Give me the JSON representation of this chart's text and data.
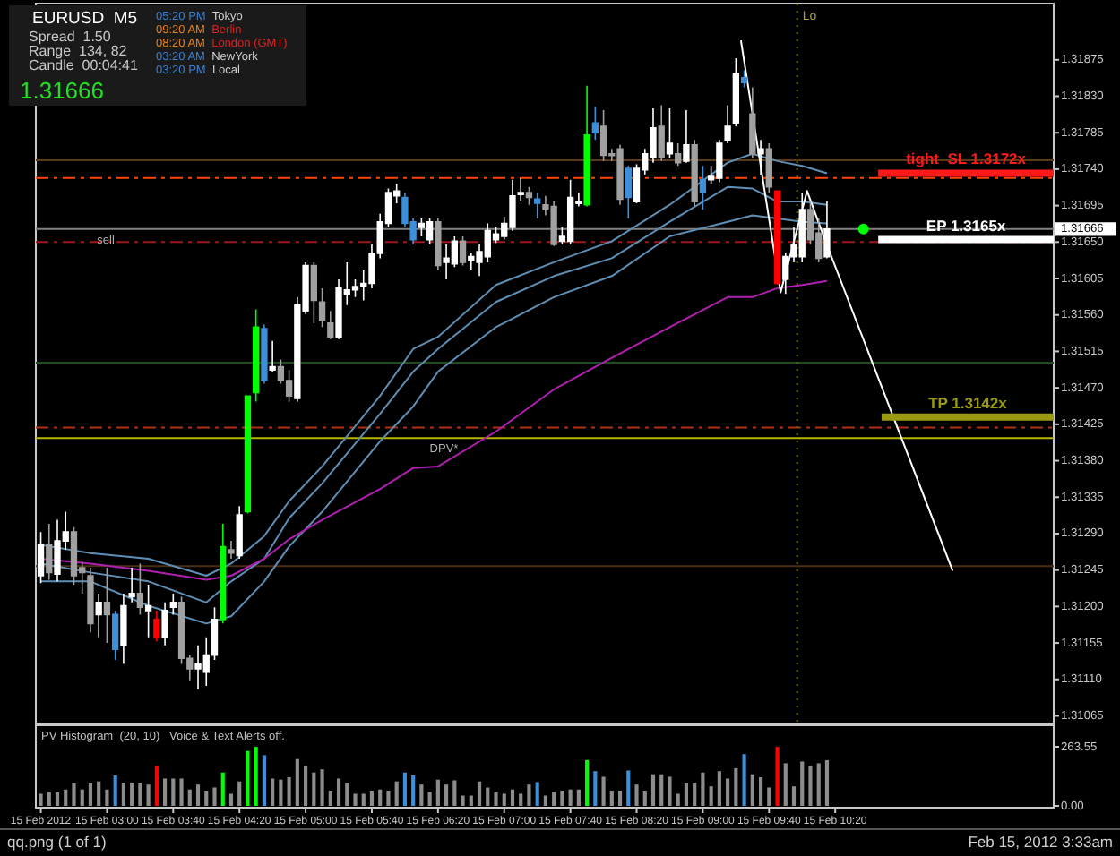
{
  "chart_data": [
    {
      "type": "candlestick",
      "title": "EURUSD  M5",
      "x": [
        "2012-02-15T02:20",
        "2012-02-15T02:25",
        "2012-02-15T02:30",
        "2012-02-15T02:35",
        "2012-02-15T02:40",
        "2012-02-15T02:45",
        "2012-02-15T02:50",
        "2012-02-15T02:55",
        "2012-02-15T03:00",
        "2012-02-15T03:05",
        "2012-02-15T03:10",
        "2012-02-15T03:15",
        "2012-02-15T03:20",
        "2012-02-15T03:25",
        "2012-02-15T03:30",
        "2012-02-15T03:35",
        "2012-02-15T03:40",
        "2012-02-15T03:45",
        "2012-02-15T03:50",
        "2012-02-15T03:55",
        "2012-02-15T04:00",
        "2012-02-15T04:05",
        "2012-02-15T04:10",
        "2012-02-15T04:15",
        "2012-02-15T04:20",
        "2012-02-15T04:25",
        "2012-02-15T04:30",
        "2012-02-15T04:35",
        "2012-02-15T04:40",
        "2012-02-15T04:45",
        "2012-02-15T04:50",
        "2012-02-15T04:55",
        "2012-02-15T05:00",
        "2012-02-15T05:05",
        "2012-02-15T05:10",
        "2012-02-15T05:15",
        "2012-02-15T05:20",
        "2012-02-15T05:25",
        "2012-02-15T05:30",
        "2012-02-15T05:35",
        "2012-02-15T05:40",
        "2012-02-15T05:45",
        "2012-02-15T05:50",
        "2012-02-15T05:55",
        "2012-02-15T06:00",
        "2012-02-15T06:05",
        "2012-02-15T06:10",
        "2012-02-15T06:15",
        "2012-02-15T06:20",
        "2012-02-15T06:25",
        "2012-02-15T06:30",
        "2012-02-15T06:35",
        "2012-02-15T06:40",
        "2012-02-15T06:45",
        "2012-02-15T06:50",
        "2012-02-15T06:55",
        "2012-02-15T07:00",
        "2012-02-15T07:05",
        "2012-02-15T07:10",
        "2012-02-15T07:15",
        "2012-02-15T07:20",
        "2012-02-15T07:25",
        "2012-02-15T07:30",
        "2012-02-15T07:35",
        "2012-02-15T07:40",
        "2012-02-15T07:45",
        "2012-02-15T07:50",
        "2012-02-15T07:55",
        "2012-02-15T08:00",
        "2012-02-15T08:05",
        "2012-02-15T08:10",
        "2012-02-15T08:15",
        "2012-02-15T08:20",
        "2012-02-15T08:25",
        "2012-02-15T08:30",
        "2012-02-15T08:35",
        "2012-02-15T08:40",
        "2012-02-15T08:45",
        "2012-02-15T08:50",
        "2012-02-15T08:55",
        "2012-02-15T09:00",
        "2012-02-15T09:05",
        "2012-02-15T09:10",
        "2012-02-15T09:15",
        "2012-02-15T09:20",
        "2012-02-15T09:25",
        "2012-02-15T09:30",
        "2012-02-15T09:35",
        "2012-02-15T09:40",
        "2012-02-15T09:45",
        "2012-02-15T09:50",
        "2012-02-15T09:55",
        "2012-02-15T10:00",
        "2012-02-15T10:05",
        "2012-02-15T10:10",
        "2012-02-15T10:15"
      ],
      "ohlc": [
        [
          1.31238,
          1.31292,
          1.31229,
          1.31276
        ],
        [
          1.31276,
          1.31302,
          1.31233,
          1.31242
        ],
        [
          1.3124,
          1.31307,
          1.31231,
          1.31281
        ],
        [
          1.31281,
          1.31317,
          1.3127,
          1.31292
        ],
        [
          1.31292,
          1.31298,
          1.31227,
          1.31238
        ],
        [
          1.31248,
          1.31255,
          1.31216,
          1.31242
        ],
        [
          1.31238,
          1.31248,
          1.31168,
          1.31179
        ],
        [
          1.3119,
          1.31216,
          1.31162,
          1.31205
        ],
        [
          1.31205,
          1.31248,
          1.31155,
          1.3119
        ],
        [
          1.3119,
          1.31195,
          1.31134,
          1.31147
        ],
        [
          1.31152,
          1.31216,
          1.31129,
          1.31201
        ],
        [
          1.31212,
          1.31248,
          1.31205,
          1.31216
        ],
        [
          1.31216,
          1.31253,
          1.3119,
          1.31199
        ],
        [
          1.31195,
          1.31227,
          1.31162,
          1.31201
        ],
        [
          1.31184,
          1.31195,
          1.31157,
          1.31162
        ],
        [
          1.31162,
          1.31205,
          1.31152,
          1.31195
        ],
        [
          1.31199,
          1.31216,
          1.3119,
          1.31205
        ],
        [
          1.31205,
          1.31212,
          1.31129,
          1.31136
        ],
        [
          1.31136,
          1.3114,
          1.31109,
          1.31123
        ],
        [
          1.31123,
          1.31152,
          1.31098,
          1.31129
        ],
        [
          1.31119,
          1.31162,
          1.31102,
          1.3114
        ],
        [
          1.3114,
          1.31199,
          1.31134,
          1.31184
        ],
        [
          1.31184,
          1.31302,
          1.31179,
          1.31274
        ],
        [
          1.3127,
          1.31281,
          1.31259,
          1.31266
        ],
        [
          1.31263,
          1.31324,
          1.31259,
          1.31313
        ],
        [
          1.31317,
          1.3146,
          1.31315,
          1.3146
        ],
        [
          1.31464,
          1.31567,
          1.31453,
          1.31545
        ],
        [
          1.31543,
          1.31548,
          1.31475,
          1.31479
        ],
        [
          1.31492,
          1.31528,
          1.3149,
          1.31496
        ],
        [
          1.31496,
          1.31505,
          1.31475,
          1.31479
        ],
        [
          1.31479,
          1.31492,
          1.31453,
          1.3146
        ],
        [
          1.31457,
          1.31582,
          1.31453,
          1.31572
        ],
        [
          1.31565,
          1.31625,
          1.31561,
          1.31621
        ],
        [
          1.31621,
          1.31625,
          1.3155,
          1.31578
        ],
        [
          1.31576,
          1.31593,
          1.31545,
          1.31554
        ],
        [
          1.3155,
          1.31565,
          1.3153,
          1.31533
        ],
        [
          1.31533,
          1.31604,
          1.3153,
          1.31593
        ],
        [
          1.31586,
          1.31625,
          1.31572,
          1.31591
        ],
        [
          1.31591,
          1.31604,
          1.31582,
          1.31595
        ],
        [
          1.31595,
          1.31615,
          1.31578,
          1.31599
        ],
        [
          1.31599,
          1.31647,
          1.31593,
          1.31636
        ],
        [
          1.31636,
          1.31685,
          1.3163,
          1.31675
        ],
        [
          1.31673,
          1.31716,
          1.31668,
          1.31711
        ],
        [
          1.31707,
          1.31722,
          1.31698,
          1.31713
        ],
        [
          1.31705,
          1.31711,
          1.31668,
          1.31673
        ],
        [
          1.31675,
          1.31679,
          1.31647,
          1.31653
        ],
        [
          1.31668,
          1.31679,
          1.31657,
          1.31673
        ],
        [
          1.31653,
          1.31679,
          1.31647,
          1.31675
        ],
        [
          1.31675,
          1.31679,
          1.31615,
          1.31621
        ],
        [
          1.31625,
          1.31647,
          1.31604,
          1.3163
        ],
        [
          1.31623,
          1.31657,
          1.31619,
          1.31651
        ],
        [
          1.31651,
          1.31657,
          1.31621,
          1.31625
        ],
        [
          1.31627,
          1.31636,
          1.31615,
          1.31632
        ],
        [
          1.31625,
          1.31647,
          1.31608,
          1.31638
        ],
        [
          1.31632,
          1.31673,
          1.31625,
          1.31664
        ],
        [
          1.31653,
          1.31668,
          1.31649,
          1.3166
        ],
        [
          1.31657,
          1.31681,
          1.31653,
          1.31673
        ],
        [
          1.31668,
          1.31727,
          1.31664,
          1.31707
        ],
        [
          1.31709,
          1.31729,
          1.317,
          1.31711
        ],
        [
          1.31711,
          1.31718,
          1.31696,
          1.31705
        ],
        [
          1.31703,
          1.31711,
          1.31679,
          1.31698
        ],
        [
          1.31696,
          1.31707,
          1.31683,
          1.3169
        ],
        [
          1.31694,
          1.317,
          1.31645,
          1.31647
        ],
        [
          1.31651,
          1.31668,
          1.31647,
          1.31657
        ],
        [
          1.31651,
          1.31727,
          1.31647,
          1.31705
        ],
        [
          1.31698,
          1.31711,
          1.31694,
          1.317
        ],
        [
          1.31696,
          1.31843,
          1.31694,
          1.31782
        ],
        [
          1.31797,
          1.31817,
          1.31776,
          1.31785
        ],
        [
          1.31793,
          1.31813,
          1.3175,
          1.31757
        ],
        [
          1.31759,
          1.31765,
          1.3175,
          1.31757
        ],
        [
          1.31765,
          1.3177,
          1.31696,
          1.31703
        ],
        [
          1.31741,
          1.31744,
          1.31679,
          1.31705
        ],
        [
          1.317,
          1.31746,
          1.31698,
          1.31741
        ],
        [
          1.31739,
          1.31765,
          1.31733,
          1.31759
        ],
        [
          1.31754,
          1.31815,
          1.31748,
          1.31791
        ],
        [
          1.31793,
          1.31819,
          1.3175,
          1.31754
        ],
        [
          1.31759,
          1.31815,
          1.31754,
          1.31772
        ],
        [
          1.31759,
          1.31772,
          1.31744,
          1.31748
        ],
        [
          1.3175,
          1.31813,
          1.31748,
          1.3177
        ],
        [
          1.3177,
          1.31776,
          1.31694,
          1.317
        ],
        [
          1.31727,
          1.31744,
          1.3169,
          1.31711
        ],
        [
          1.31727,
          1.31744,
          1.31722,
          1.31731
        ],
        [
          1.31729,
          1.31776,
          1.31724,
          1.31772
        ],
        [
          1.31776,
          1.31819,
          1.31772,
          1.31793
        ],
        [
          1.31797,
          1.31877,
          1.31793,
          1.31858
        ],
        [
          1.31853,
          1.31862,
          1.31841,
          1.31847
        ],
        [
          1.31808,
          1.31841,
          1.31754,
          1.31759
        ],
        [
          1.31759,
          1.31776,
          1.31733,
          1.31765
        ],
        [
          1.31765,
          1.31772,
          1.31711,
          1.31718
        ],
        [
          1.31713,
          1.31713,
          1.31597,
          1.31599
        ],
        [
          1.31604,
          1.31636,
          1.31586,
          1.31632
        ],
        [
          1.31632,
          1.31668,
          1.31625,
          1.31647
        ],
        [
          1.31632,
          1.31711,
          1.31625,
          1.3169
        ],
        [
          1.3169,
          1.317,
          1.31647,
          1.31653
        ],
        [
          1.31661,
          1.31679,
          1.31625,
          1.3163
        ],
        [
          1.31632,
          1.317,
          1.3163,
          1.31666
        ]
      ],
      "colors": [
        "#ffffff",
        "#a0a0a0",
        "#ffffff",
        "#ffffff",
        "#a0a0a0",
        "#a0a0a0",
        "#a0a0a0",
        "#ffffff",
        "#a0a0a0",
        "#3d8fd9",
        "#ffffff",
        "#ffffff",
        "#a0a0a0",
        "#ffffff",
        "#ff0000",
        "#ffffff",
        "#ffffff",
        "#a0a0a0",
        "#a0a0a0",
        "#ffffff",
        "#ffffff",
        "#ffffff",
        "#00ff00",
        "#a0a0a0",
        "#ffffff",
        "#00ff00",
        "#00ff00",
        "#3d8fd9",
        "#ffffff",
        "#a0a0a0",
        "#a0a0a0",
        "#ffffff",
        "#ffffff",
        "#a0a0a0",
        "#a0a0a0",
        "#a0a0a0",
        "#ffffff",
        "#ffffff",
        "#ffffff",
        "#ffffff",
        "#ffffff",
        "#ffffff",
        "#ffffff",
        "#ffffff",
        "#3d8fd9",
        "#3d8fd9",
        "#ffffff",
        "#ffffff",
        "#a0a0a0",
        "#ffffff",
        "#ffffff",
        "#a0a0a0",
        "#ffffff",
        "#ffffff",
        "#ffffff",
        "#ffffff",
        "#ffffff",
        "#ffffff",
        "#ffffff",
        "#a0a0a0",
        "#3d8fd9",
        "#a0a0a0",
        "#a0a0a0",
        "#ffffff",
        "#ffffff",
        "#ffffff",
        "#00ff00",
        "#3d8fd9",
        "#a0a0a0",
        "#a0a0a0",
        "#a0a0a0",
        "#3d8fd9",
        "#ffffff",
        "#ffffff",
        "#ffffff",
        "#a0a0a0",
        "#ffffff",
        "#a0a0a0",
        "#ffffff",
        "#a0a0a0",
        "#3d8fd9",
        "#ffffff",
        "#ffffff",
        "#ffffff",
        "#ffffff",
        "#3d8fd9",
        "#a0a0a0",
        "#ffffff",
        "#a0a0a0",
        "#ff0000",
        "#ffffff",
        "#ffffff",
        "#ffffff",
        "#a0a0a0",
        "#a0a0a0",
        "#ffffff"
      ],
      "series": [
        {
          "type": "line",
          "color": "#5f8fb5",
          "x": [
            "2012-02-15T02:20",
            "2012-02-15T02:50",
            "2012-02-15T03:25",
            "2012-02-15T04:00",
            "2012-02-15T04:15",
            "2012-02-15T04:35",
            "2012-02-15T04:50",
            "2012-02-15T05:10",
            "2012-02-15T05:45",
            "2012-02-15T06:05",
            "2012-02-15T06:20",
            "2012-02-15T06:55",
            "2012-02-15T07:30",
            "2012-02-15T08:05",
            "2012-02-15T08:40",
            "2012-02-15T09:15",
            "2012-02-15T09:30",
            "2012-02-15T09:45",
            "2012-02-15T10:00",
            "2012-02-15T10:15"
          ],
          "values": [
            1.31276,
            1.31266,
            1.31259,
            1.31238,
            1.31253,
            1.31287,
            1.3133,
            1.31373,
            1.3146,
            1.31518,
            1.31533,
            1.31597,
            1.31625,
            1.31651,
            1.31696,
            1.31748,
            1.31759,
            1.3175,
            1.31744,
            1.31735
          ]
        },
        {
          "type": "line",
          "color": "#5f8fb5",
          "x": [
            "2012-02-15T02:20",
            "2012-02-15T02:50",
            "2012-02-15T03:25",
            "2012-02-15T04:00",
            "2012-02-15T04:15",
            "2012-02-15T04:35",
            "2012-02-15T04:50",
            "2012-02-15T05:10",
            "2012-02-15T05:45",
            "2012-02-15T06:05",
            "2012-02-15T06:20",
            "2012-02-15T06:55",
            "2012-02-15T07:30",
            "2012-02-15T08:05",
            "2012-02-15T08:40",
            "2012-02-15T09:15",
            "2012-02-15T09:30",
            "2012-02-15T09:45",
            "2012-02-15T10:00",
            "2012-02-15T10:15"
          ],
          "values": [
            1.31253,
            1.31242,
            1.31231,
            1.31205,
            1.31231,
            1.31259,
            1.31309,
            1.31352,
            1.31438,
            1.3149,
            1.31518,
            1.31576,
            1.31608,
            1.3163,
            1.31675,
            1.31718,
            1.31716,
            1.317,
            1.317,
            1.31696
          ]
        },
        {
          "type": "line",
          "color": "#5f8fb5",
          "x": [
            "2012-02-15T02:20",
            "2012-02-15T02:50",
            "2012-02-15T03:25",
            "2012-02-15T04:00",
            "2012-02-15T04:15",
            "2012-02-15T04:35",
            "2012-02-15T04:50",
            "2012-02-15T05:10",
            "2012-02-15T05:45",
            "2012-02-15T06:05",
            "2012-02-15T06:20",
            "2012-02-15T06:55",
            "2012-02-15T07:30",
            "2012-02-15T08:05",
            "2012-02-15T08:40",
            "2012-02-15T09:15",
            "2012-02-15T09:30",
            "2012-02-15T09:45",
            "2012-02-15T10:00",
            "2012-02-15T10:15"
          ],
          "values": [
            1.31231,
            1.31231,
            1.31201,
            1.31179,
            1.31188,
            1.31231,
            1.31274,
            1.31317,
            1.31404,
            1.31447,
            1.3149,
            1.31545,
            1.31582,
            1.31608,
            1.31657,
            1.31675,
            1.31683,
            1.31679,
            1.31675,
            1.31673
          ]
        },
        {
          "type": "line",
          "color": "#b020b0",
          "x": [
            "2012-02-15T02:20",
            "2012-02-15T02:50",
            "2012-02-15T03:25",
            "2012-02-15T04:00",
            "2012-02-15T04:15",
            "2012-02-15T04:35",
            "2012-02-15T04:50",
            "2012-02-15T05:10",
            "2012-02-15T05:45",
            "2012-02-15T06:05",
            "2012-02-15T06:20",
            "2012-02-15T06:55",
            "2012-02-15T07:30",
            "2012-02-15T08:05",
            "2012-02-15T08:40",
            "2012-02-15T09:15",
            "2012-02-15T09:30",
            "2012-02-15T09:45",
            "2012-02-15T10:00",
            "2012-02-15T10:15"
          ],
          "values": [
            1.31259,
            1.31253,
            1.31244,
            1.31233,
            1.31238,
            1.31259,
            1.31283,
            1.31307,
            1.31345,
            1.31371,
            1.31373,
            1.31416,
            1.31468,
            1.31507,
            1.31545,
            1.31582,
            1.31582,
            1.31593,
            1.31597,
            1.31602
          ]
        },
        {
          "type": "line",
          "color": "#ffffff",
          "x": [
            "2012-02-15T09:23",
            "2012-02-15T09:47",
            "2012-02-15T10:03",
            "2012-02-15T10:13",
            "2012-02-15T11:31"
          ],
          "values": [
            1.31899,
            1.31588,
            1.31713,
            1.31657,
            1.31244
          ]
        },
        {
          "type": "scatter",
          "color": "#00ff00",
          "marker": "circle",
          "x": [
            "2012-02-15T10:37"
          ],
          "values": [
            1.31666
          ]
        },
        {
          "type": "line",
          "name": "tight  SL 1.3172x",
          "color": "#ff1a1a",
          "x": [
            "2012-02-15T10:46",
            "2012-02-15T12:32"
          ],
          "values": [
            1.31735,
            1.31735
          ]
        },
        {
          "type": "line",
          "name": "EP 1.3165x",
          "color": "#ffffff",
          "x": [
            "2012-02-15T10:46",
            "2012-02-15T12:32"
          ],
          "values": [
            1.31653,
            1.31653
          ]
        },
        {
          "type": "line",
          "name": "TP 1.3142x",
          "color": "#9a9a10",
          "x": [
            "2012-02-15T10:48",
            "2012-02-15T12:32"
          ],
          "values": [
            1.31434,
            1.31434
          ]
        }
      ],
      "xlim": [
        "2012-02-15T02:17",
        "2012-02-15T12:32"
      ],
      "ylim": [
        1.3106,
        1.3194
      ],
      "yticks": [
        1.31875,
        {
          "value": 1.3183,
          "label": "1.31830"
        },
        1.31785,
        {
          "value": 1.3174,
          "label": "1.31740"
        },
        1.31695,
        {
          "value": 1.3165,
          "label": "1.31650"
        },
        1.31605,
        {
          "value": 1.3156,
          "label": "1.31560"
        },
        1.31515,
        {
          "value": 1.3147,
          "label": "1.31470"
        },
        1.31425,
        {
          "value": 1.3138,
          "label": "1.31380"
        },
        1.31335,
        {
          "value": 1.3129,
          "label": "1.31290"
        },
        1.31245,
        {
          "value": 1.312,
          "label": "1.31200"
        },
        1.31155,
        {
          "value": 1.3111,
          "label": "1.31110"
        },
        1.31065
      ],
      "tick_labels": "y",
      "ref_lines": [
        {
          "axis": "y",
          "value": 1.31751,
          "color": "#5a3a1a",
          "line_style": "solid"
        },
        {
          "axis": "y",
          "value": 1.31729,
          "color": "#ff4500",
          "line_style": "dashed"
        },
        {
          "axis": "y",
          "value": 1.31666,
          "color": "#808080",
          "line_style": "solid",
          "label": "1.31666"
        },
        {
          "axis": "y",
          "value": 1.3165,
          "color": "#a01818",
          "line_style": "dashed"
        },
        {
          "axis": "y",
          "value": 1.31501,
          "color": "#1e4d1e",
          "line_style": "solid"
        },
        {
          "axis": "y",
          "value": 1.31421,
          "color": "#b03010",
          "line_style": "dashed"
        },
        {
          "axis": "y",
          "value": 1.31408,
          "color": "#b5b500",
          "line_style": "solid"
        },
        {
          "axis": "y",
          "value": 1.3125,
          "color": "#4a2e14",
          "line_style": "solid"
        },
        {
          "axis": "x",
          "value": "2012-02-15T09:57",
          "color": "#6b6b00",
          "line_style": "dotted",
          "label": "Lo"
        }
      ],
      "annotations": [
        {
          "text": "DPV*",
          "x": "2012-02-15T06:15",
          "y": 1.31408
        },
        {
          "text": "sell",
          "x": "2012-02-15T02:54",
          "y": 1.31666
        },
        "Spread  1.50",
        "Range  134, 82",
        "Candle  00:04:41",
        "1.31666",
        "05:20 PM  Tokyo",
        "09:20 AM  Berlin",
        "08:20 AM  London (GMT)",
        "03:20 AM  NewYork",
        "03:20 PM  Local"
      ]
    },
    {
      "type": "bar",
      "title": "PV Histogram  (20, 10)   Voice & Text Alerts off.",
      "x": [
        "2012-02-15T02:20",
        "2012-02-15T02:25",
        "2012-02-15T02:30",
        "2012-02-15T02:35",
        "2012-02-15T02:40",
        "2012-02-15T02:45",
        "2012-02-15T02:50",
        "2012-02-15T02:55",
        "2012-02-15T03:00",
        "2012-02-15T03:05",
        "2012-02-15T03:10",
        "2012-02-15T03:15",
        "2012-02-15T03:20",
        "2012-02-15T03:25",
        "2012-02-15T03:30",
        "2012-02-15T03:35",
        "2012-02-15T03:40",
        "2012-02-15T03:45",
        "2012-02-15T03:50",
        "2012-02-15T03:55",
        "2012-02-15T04:00",
        "2012-02-15T04:05",
        "2012-02-15T04:10",
        "2012-02-15T04:15",
        "2012-02-15T04:20",
        "2012-02-15T04:25",
        "2012-02-15T04:30",
        "2012-02-15T04:35",
        "2012-02-15T04:40",
        "2012-02-15T04:45",
        "2012-02-15T04:50",
        "2012-02-15T04:55",
        "2012-02-15T05:00",
        "2012-02-15T05:05",
        "2012-02-15T05:10",
        "2012-02-15T05:15",
        "2012-02-15T05:20",
        "2012-02-15T05:25",
        "2012-02-15T05:30",
        "2012-02-15T05:35",
        "2012-02-15T05:40",
        "2012-02-15T05:45",
        "2012-02-15T05:50",
        "2012-02-15T05:55",
        "2012-02-15T06:00",
        "2012-02-15T06:05",
        "2012-02-15T06:10",
        "2012-02-15T06:15",
        "2012-02-15T06:20",
        "2012-02-15T06:25",
        "2012-02-15T06:30",
        "2012-02-15T06:35",
        "2012-02-15T06:40",
        "2012-02-15T06:45",
        "2012-02-15T06:50",
        "2012-02-15T06:55",
        "2012-02-15T07:00",
        "2012-02-15T07:05",
        "2012-02-15T07:10",
        "2012-02-15T07:15",
        "2012-02-15T07:20",
        "2012-02-15T07:25",
        "2012-02-15T07:30",
        "2012-02-15T07:35",
        "2012-02-15T07:40",
        "2012-02-15T07:45",
        "2012-02-15T07:50",
        "2012-02-15T07:55",
        "2012-02-15T08:00",
        "2012-02-15T08:05",
        "2012-02-15T08:10",
        "2012-02-15T08:15",
        "2012-02-15T08:20",
        "2012-02-15T08:25",
        "2012-02-15T08:30",
        "2012-02-15T08:35",
        "2012-02-15T08:40",
        "2012-02-15T08:45",
        "2012-02-15T08:50",
        "2012-02-15T08:55",
        "2012-02-15T09:00",
        "2012-02-15T09:05",
        "2012-02-15T09:10",
        "2012-02-15T09:15",
        "2012-02-15T09:20",
        "2012-02-15T09:25",
        "2012-02-15T09:30",
        "2012-02-15T09:35",
        "2012-02-15T09:40",
        "2012-02-15T09:45",
        "2012-02-15T09:50",
        "2012-02-15T09:55",
        "2012-02-15T10:00",
        "2012-02-15T10:05",
        "2012-02-15T10:10",
        "2012-02-15T10:15"
      ],
      "values": [
        54,
        62,
        60,
        73,
        101,
        73,
        101,
        109,
        73,
        136,
        103,
        103,
        103,
        95,
        177,
        122,
        122,
        122,
        73,
        95,
        68,
        82,
        149,
        54,
        109,
        245,
        263,
        226,
        122,
        117,
        128,
        209,
        177,
        149,
        163,
        68,
        122,
        101,
        54,
        54,
        68,
        73,
        68,
        109,
        149,
        136,
        95,
        62,
        117,
        95,
        114,
        46,
        46,
        109,
        82,
        60,
        54,
        73,
        54,
        95,
        106,
        46,
        62,
        68,
        73,
        73,
        204,
        155,
        130,
        68,
        68,
        158,
        95,
        68,
        141,
        141,
        130,
        54,
        101,
        103,
        149,
        87,
        155,
        122,
        168,
        231,
        141,
        128,
        82,
        263,
        190,
        87,
        198,
        177,
        190,
        204
      ],
      "colors": [
        "#8c8c8c",
        "#8c8c8c",
        "#8c8c8c",
        "#8c8c8c",
        "#8c8c8c",
        "#8c8c8c",
        "#8c8c8c",
        "#8c8c8c",
        "#8c8c8c",
        "#3d8fd9",
        "#8c8c8c",
        "#8c8c8c",
        "#8c8c8c",
        "#8c8c8c",
        "#ff0000",
        "#8c8c8c",
        "#8c8c8c",
        "#8c8c8c",
        "#8c8c8c",
        "#8c8c8c",
        "#8c8c8c",
        "#8c8c8c",
        "#00ff00",
        "#8c8c8c",
        "#8c8c8c",
        "#00ff00",
        "#00ff00",
        "#3d8fd9",
        "#8c8c8c",
        "#8c8c8c",
        "#8c8c8c",
        "#8c8c8c",
        "#8c8c8c",
        "#8c8c8c",
        "#8c8c8c",
        "#8c8c8c",
        "#8c8c8c",
        "#8c8c8c",
        "#8c8c8c",
        "#8c8c8c",
        "#8c8c8c",
        "#8c8c8c",
        "#8c8c8c",
        "#8c8c8c",
        "#3d8fd9",
        "#3d8fd9",
        "#8c8c8c",
        "#8c8c8c",
        "#8c8c8c",
        "#8c8c8c",
        "#8c8c8c",
        "#8c8c8c",
        "#8c8c8c",
        "#8c8c8c",
        "#8c8c8c",
        "#8c8c8c",
        "#8c8c8c",
        "#8c8c8c",
        "#8c8c8c",
        "#8c8c8c",
        "#3d8fd9",
        "#8c8c8c",
        "#8c8c8c",
        "#8c8c8c",
        "#8c8c8c",
        "#8c8c8c",
        "#00ff00",
        "#3d8fd9",
        "#8c8c8c",
        "#8c8c8c",
        "#8c8c8c",
        "#3d8fd9",
        "#8c8c8c",
        "#8c8c8c",
        "#8c8c8c",
        "#8c8c8c",
        "#8c8c8c",
        "#8c8c8c",
        "#8c8c8c",
        "#8c8c8c",
        "#8c8c8c",
        "#8c8c8c",
        "#8c8c8c",
        "#8c8c8c",
        "#8c8c8c",
        "#3d8fd9",
        "#8c8c8c",
        "#8c8c8c",
        "#8c8c8c",
        "#ff0000",
        "#8c8c8c",
        "#8c8c8c",
        "#8c8c8c",
        "#8c8c8c",
        "#8c8c8c",
        "#8c8c8c"
      ],
      "xlim": [
        "2012-02-15T02:17",
        "2012-02-15T12:32"
      ],
      "xticks": [
        {
          "value": "2012-02-15T02:20",
          "label": "15 Feb 2012"
        },
        {
          "value": "2012-02-15T03:00",
          "label": "15 Feb 03:00"
        },
        {
          "value": "2012-02-15T03:40",
          "label": "15 Feb 03:40"
        },
        {
          "value": "2012-02-15T04:20",
          "label": "15 Feb 04:20"
        },
        {
          "value": "2012-02-15T05:00",
          "label": "15 Feb 05:00"
        },
        {
          "value": "2012-02-15T05:40",
          "label": "15 Feb 05:40"
        },
        {
          "value": "2012-02-15T06:20",
          "label": "15 Feb 06:20"
        },
        {
          "value": "2012-02-15T07:00",
          "label": "15 Feb 07:00"
        },
        {
          "value": "2012-02-15T07:40",
          "label": "15 Feb 07:40"
        },
        {
          "value": "2012-02-15T08:20",
          "label": "15 Feb 08:20"
        },
        {
          "value": "2012-02-15T09:00",
          "label": "15 Feb 09:00"
        },
        {
          "value": "2012-02-15T09:40",
          "label": "15 Feb 09:40"
        },
        {
          "value": "2012-02-15T10:20",
          "label": "15 Feb 10:20"
        }
      ],
      "ylim": [
        0,
        263.55
      ],
      "yticks": [
        {
          "value": 0,
          "label": "0.00"
        },
        263.55
      ],
      "annotations": [
        "qq.png (1 of 1)",
        "Feb 15, 2012 3:33am"
      ]
    }
  ]
}
